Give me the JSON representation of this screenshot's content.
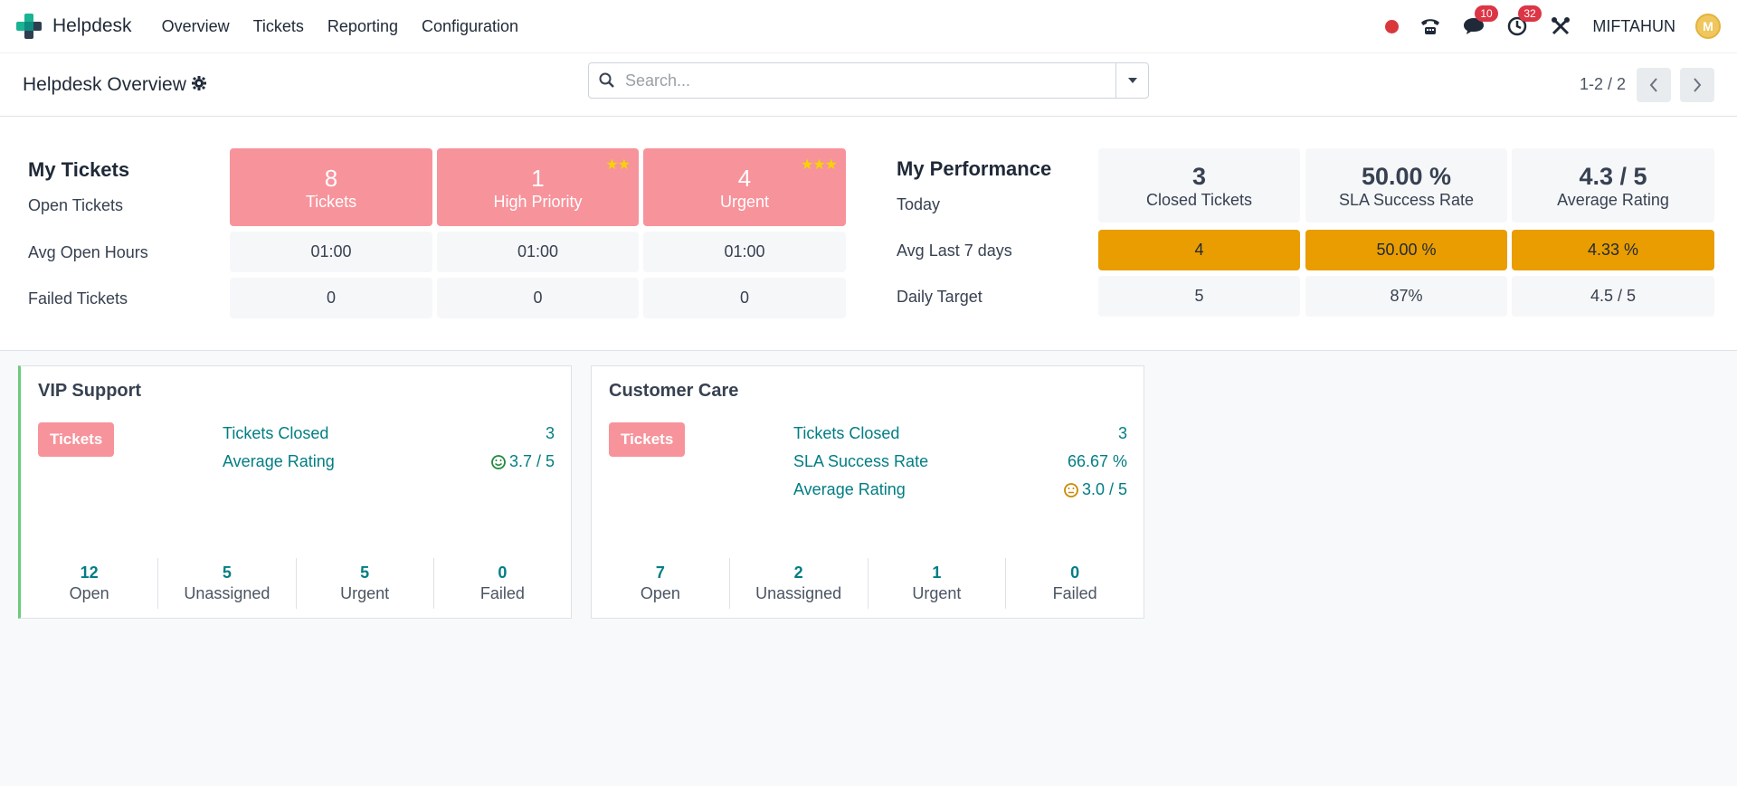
{
  "nav": {
    "app_name": "Helpdesk",
    "menu": [
      "Overview",
      "Tickets",
      "Reporting",
      "Configuration"
    ],
    "messages_badge": "10",
    "activities_badge": "32",
    "user_name": "MIFTAHUN",
    "avatar_initial": "M"
  },
  "control": {
    "title": "Helpdesk Overview",
    "search_placeholder": "Search...",
    "pager": "1-2 / 2"
  },
  "my_tickets": {
    "title": "My Tickets",
    "row_labels": [
      "Open Tickets",
      "Avg Open Hours",
      "Failed Tickets"
    ],
    "columns": [
      {
        "count": "8",
        "label": "Tickets",
        "stars": ""
      },
      {
        "count": "1",
        "label": "High Priority",
        "stars": "★★"
      },
      {
        "count": "4",
        "label": "Urgent",
        "stars": "★★★"
      }
    ],
    "avg_hours": [
      "01:00",
      "01:00",
      "01:00"
    ],
    "failed": [
      "0",
      "0",
      "0"
    ]
  },
  "my_performance": {
    "title": "My Performance",
    "row_labels": [
      "Today",
      "Avg Last 7 days",
      "Daily Target"
    ],
    "columns": [
      {
        "value": "3",
        "label": "Closed Tickets"
      },
      {
        "value": "50.00 %",
        "label": "SLA Success Rate"
      },
      {
        "value": "4.3 / 5",
        "label": "Average Rating"
      }
    ],
    "last7": [
      "4",
      "50.00 %",
      "4.33 %"
    ],
    "target": [
      "5",
      "87%",
      "4.5 / 5"
    ]
  },
  "teams": [
    {
      "name": "VIP Support",
      "button": "Tickets",
      "stats": [
        {
          "label": "Tickets Closed",
          "value": "3"
        },
        {
          "label": "Average Rating",
          "value": "3.7 / 5"
        }
      ],
      "footer": [
        {
          "num": "12",
          "label": "Open"
        },
        {
          "num": "5",
          "label": "Unassigned"
        },
        {
          "num": "5",
          "label": "Urgent"
        },
        {
          "num": "0",
          "label": "Failed"
        }
      ]
    },
    {
      "name": "Customer Care",
      "button": "Tickets",
      "stats": [
        {
          "label": "Tickets Closed",
          "value": "3"
        },
        {
          "label": "SLA Success Rate",
          "value": "66.67 %"
        },
        {
          "label": "Average Rating",
          "value": "3.0 / 5"
        }
      ],
      "footer": [
        {
          "num": "7",
          "label": "Open"
        },
        {
          "num": "2",
          "label": "Unassigned"
        },
        {
          "num": "1",
          "label": "Urgent"
        },
        {
          "num": "0",
          "label": "Failed"
        }
      ]
    }
  ],
  "colors": {
    "accent_teal": "#017e84",
    "ticket_red": "#f7939b",
    "perf_orange": "#e99d00",
    "vip_border": "#6ccb7a"
  }
}
